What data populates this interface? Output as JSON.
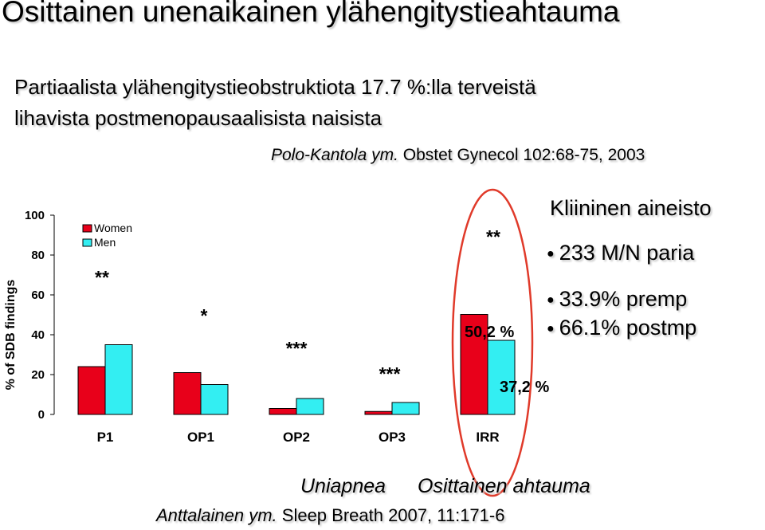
{
  "title": "Osittainen unenaikainen ylähengitystieahtauma",
  "subtitle_line1": "Partiaalista ylähengitystieobstruktiota 17.7 %:lla terveistä",
  "subtitle_line2": "lihavista postmenopausaalisista naisista",
  "citation_top": {
    "authors": "Polo-Kantola ym.",
    "source": "Obstet Gynecol 102:68-75, 2003"
  },
  "info": {
    "title": "Kliininen aineisto",
    "items": [
      "233 M/N paria",
      "33.9% premp",
      "66.1% postmp"
    ]
  },
  "captions": {
    "uniapnea": "Uniapnea",
    "osittainen": "Osittainen ahtauma"
  },
  "citation_bottom": {
    "authors": "Anttalainen ym.",
    "source": "Sleep Breath 2007, 11:171-6"
  },
  "colors": {
    "women": "#e8001a",
    "men": "#33eef2",
    "highlight_ellipse": "#e03a2a"
  },
  "chart_data": {
    "type": "bar",
    "ylabel": "% of SDB findings",
    "ylim": [
      0,
      100
    ],
    "yticks": [
      0,
      20,
      40,
      60,
      80,
      100
    ],
    "categories": [
      "P1",
      "OP1",
      "OP2",
      "OP3",
      "IRR"
    ],
    "series": [
      {
        "name": "Women",
        "values": [
          24,
          21,
          3,
          1.5,
          50.2
        ]
      },
      {
        "name": "Men",
        "values": [
          35,
          15,
          8,
          6,
          37.2
        ]
      }
    ],
    "significance": [
      "**",
      "*",
      "***",
      "***",
      "**"
    ],
    "data_labels": [
      "50,2 %",
      "37,2 %"
    ],
    "legend_position": "top-left"
  }
}
